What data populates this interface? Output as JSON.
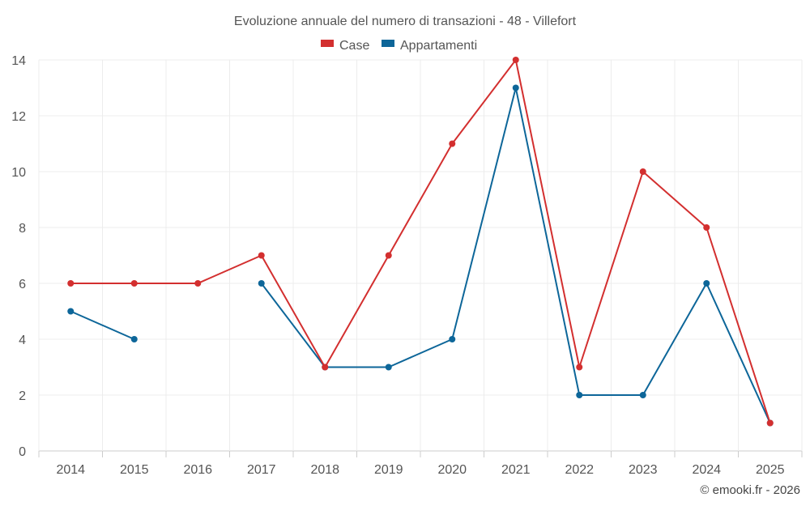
{
  "chart_data": {
    "type": "line",
    "title": "Evoluzione annuale del numero di transazioni - 48 - Villefort",
    "categories": [
      "2014",
      "2015",
      "2016",
      "2017",
      "2018",
      "2019",
      "2020",
      "2021",
      "2022",
      "2023",
      "2024",
      "2025"
    ],
    "series": [
      {
        "name": "Case",
        "color": "#d32f2f",
        "values": [
          6,
          6,
          6,
          7,
          3,
          7,
          11,
          14,
          3,
          10,
          8,
          1
        ]
      },
      {
        "name": "Appartamenti",
        "color": "#0d6699",
        "values": [
          5,
          4,
          null,
          6,
          3,
          3,
          4,
          13,
          2,
          2,
          6,
          1
        ]
      }
    ],
    "y_ticks": [
      "0",
      "2",
      "4",
      "6",
      "8",
      "10",
      "12",
      "14"
    ],
    "ylim": [
      0,
      14
    ],
    "grid": true,
    "legend_position": "top-center"
  },
  "credit": "© emooki.fr - 2026"
}
